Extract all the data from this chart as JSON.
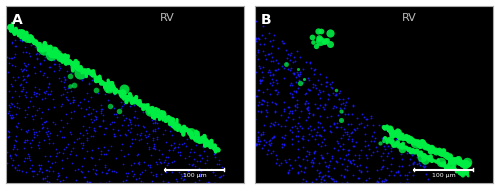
{
  "fig_width": 5.0,
  "fig_height": 1.91,
  "dpi": 100,
  "panel_A_label": "A",
  "panel_B_label": "B",
  "rv_label": "RV",
  "scale_bar_text": "100 μm",
  "bg_color": "#000000",
  "outer_bg": "#ffffff",
  "panel_border_color": "#aaaaaa",
  "label_color": "#ffffff",
  "rv_color": "#bbbbbb",
  "green_color": "#00ee44",
  "blue_color": "#1a1aff",
  "blue_dark": "#0000cc",
  "scale_bar_color": "#ffffff",
  "seed_A": 42,
  "seed_B": 123,
  "n_blue_A": 700,
  "n_blue_B": 600
}
